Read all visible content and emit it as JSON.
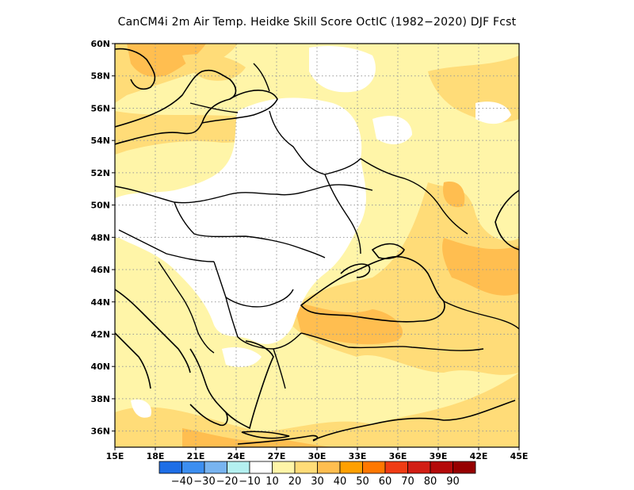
{
  "title": "CanCM4i  2m Air Temp. Heidke Skill Score OctIC (1982−2020) DJF Fcst",
  "map": {
    "lon_range": [
      15,
      45
    ],
    "lat_range": [
      35,
      60
    ],
    "x_ticks": [
      "15E",
      "18E",
      "21E",
      "24E",
      "27E",
      "30E",
      "33E",
      "36E",
      "39E",
      "42E",
      "45E"
    ],
    "y_ticks": [
      "36N",
      "38N",
      "40N",
      "42N",
      "44N",
      "46N",
      "48N",
      "50N",
      "52N",
      "54N",
      "56N",
      "58N",
      "60N"
    ],
    "grid": "dotted"
  },
  "colorbar": {
    "labels": [
      "−40",
      "−30",
      "−20",
      "−10",
      "10",
      "20",
      "30",
      "40",
      "50",
      "60",
      "70",
      "80",
      "90"
    ],
    "colors": [
      "#1e6ee6",
      "#3c8ef0",
      "#78b4f0",
      "#b4f0f0",
      "#ffffff",
      "#fff5a8",
      "#ffdc78",
      "#ffbe50",
      "#ffa000",
      "#ff7800",
      "#f03c14",
      "#d21e14",
      "#b40a0a",
      "#960000"
    ]
  }
}
